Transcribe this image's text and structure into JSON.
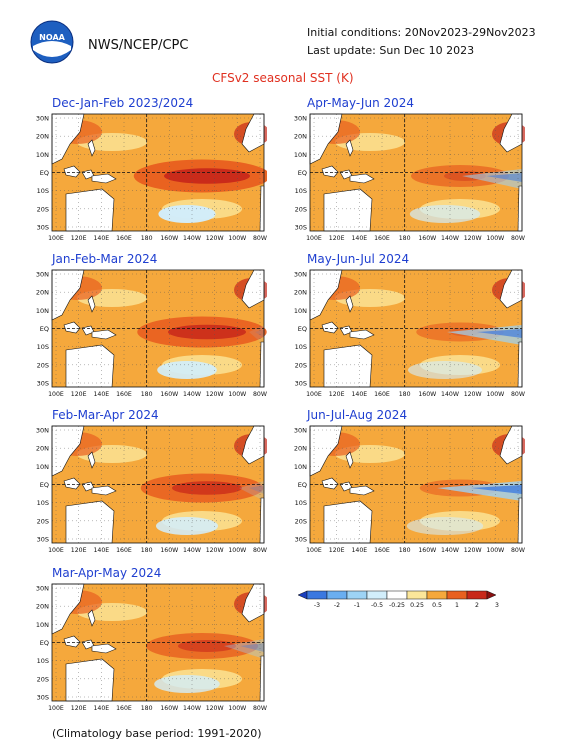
{
  "header": {
    "org": "NWS/NCEP/CPC",
    "initial_conditions": "Initial conditions: 20Nov2023-29Nov2023",
    "last_update": "Last update: Sun Dec 10 2023",
    "title": "CFSv2 seasonal SST (K)",
    "logo_text": "NOAA"
  },
  "axes": {
    "lat_labels": [
      "30N",
      "20N",
      "10N",
      "EQ",
      "10S",
      "20S",
      "30S"
    ],
    "lon_labels": [
      "100E",
      "120E",
      "140E",
      "160E",
      "180",
      "160W",
      "140W",
      "120W",
      "100W",
      "80W"
    ]
  },
  "panels": [
    {
      "title": "Dec-Jan-Feb 2023/2024",
      "anomaly_strength": 0.95
    },
    {
      "title": "Jan-Feb-Mar 2024",
      "anomaly_strength": 0.85
    },
    {
      "title": "Feb-Mar-Apr 2024",
      "anomaly_strength": 0.75
    },
    {
      "title": "Mar-Apr-May 2024",
      "anomaly_strength": 0.6
    },
    {
      "title": "Apr-May-Jun 2024",
      "anomaly_strength": 0.4
    },
    {
      "title": "May-Jun-Jul 2024",
      "anomaly_strength": 0.25
    },
    {
      "title": "Jun-Jul-Aug 2024",
      "anomaly_strength": 0.15
    }
  ],
  "colorbar": {
    "labels": [
      "-3",
      "-2",
      "-1",
      "-0.5",
      "-0.25",
      "0.25",
      "0.5",
      "1",
      "2",
      "3"
    ],
    "colors": [
      "#1a3fbf",
      "#3a78e0",
      "#6aaef0",
      "#9dd3f5",
      "#d2eefb",
      "#ffffff",
      "#fbe69a",
      "#f5a83c",
      "#e86020",
      "#c8281a",
      "#8a1010"
    ]
  },
  "footer": "(Climatology base period: 1991-2020)"
}
